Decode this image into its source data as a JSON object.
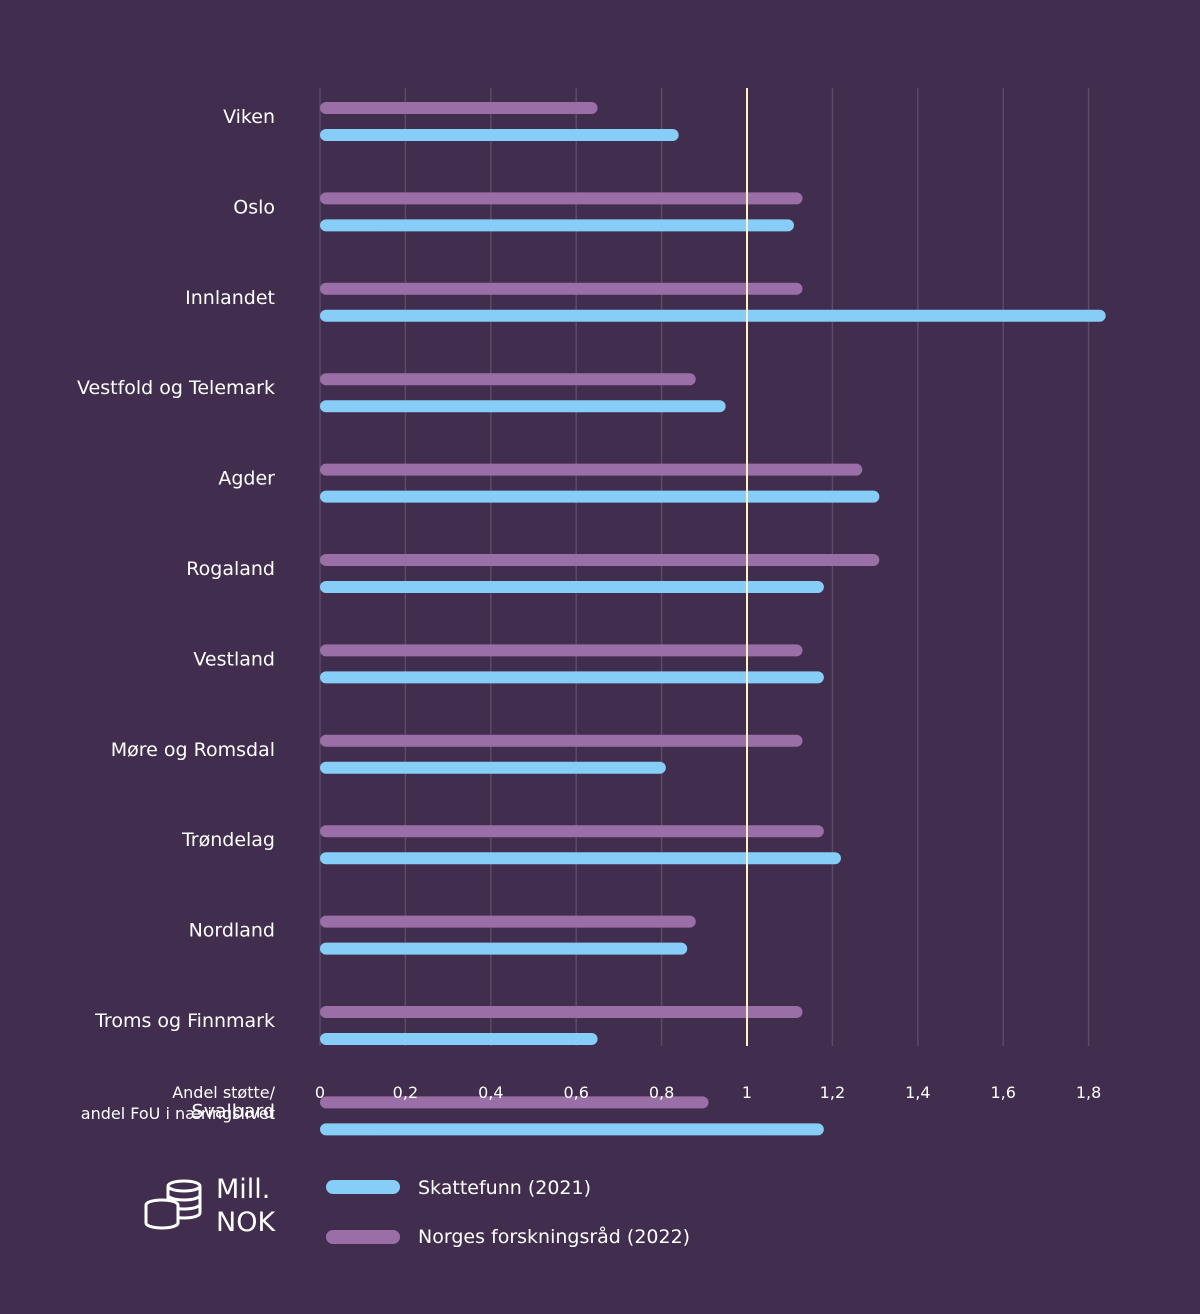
{
  "chart_data": {
    "type": "bar",
    "orientation": "horizontal",
    "categories": [
      "Viken",
      "Oslo",
      "Innlandet",
      "Vestfold og Telemark",
      "Agder",
      "Rogaland",
      "Vestland",
      "Møre og Romsdal",
      "Trøndelag",
      "Nordland",
      "Troms og Finnmark",
      "Svalbard"
    ],
    "series": [
      {
        "name": "Norges forskningsråd (2022)",
        "color": "#9a6ea7",
        "values": [
          0.65,
          1.13,
          1.13,
          0.88,
          1.27,
          1.31,
          1.13,
          1.13,
          1.18,
          0.88,
          1.13,
          0.91
        ]
      },
      {
        "name": "Skattefunn (2021)",
        "color": "#86cdf8",
        "values": [
          0.84,
          1.11,
          1.84,
          0.95,
          1.31,
          1.18,
          1.18,
          0.81,
          1.22,
          0.86,
          0.65,
          1.18
        ]
      }
    ],
    "xlim": [
      0,
      1.85
    ],
    "ticks": [
      0,
      0.2,
      0.4,
      0.6,
      0.8,
      1,
      1.2,
      1.4,
      1.6,
      1.8
    ],
    "tick_labels": [
      "0",
      "0,2",
      "0,4",
      "0,6",
      "0,8",
      "1",
      "1,2",
      "1,4",
      "1,6",
      "1,8"
    ],
    "reference_line": {
      "value": 1,
      "color": "#fff3c2"
    },
    "xlabel": [
      "Andel støtte/",
      "andel FoU i næringslivet"
    ],
    "grid": true,
    "legend": {
      "position": "bottom",
      "unit_label": [
        "Mill.",
        "NOK"
      ],
      "unit_icon": "coins-icon",
      "entries": [
        {
          "label": "Skattefunn (2021)",
          "color": "#86cdf8"
        },
        {
          "label": "Norges forskningsråd (2022)",
          "color": "#9a6ea7"
        }
      ]
    }
  }
}
